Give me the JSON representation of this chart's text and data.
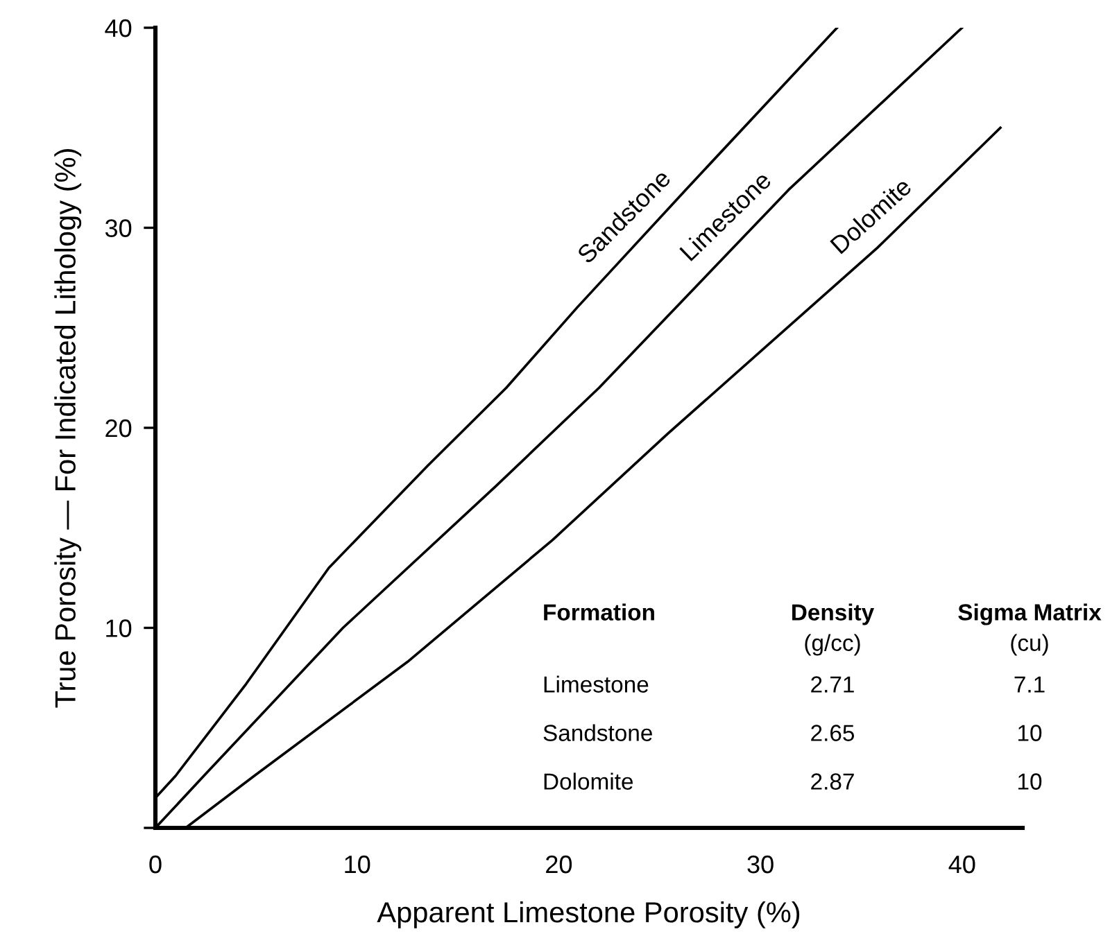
{
  "chart_data": {
    "type": "line",
    "xlabel": "Apparent Limestone Porosity (%)",
    "ylabel": "True Porosity — For Indicated Lithology (%)",
    "xlim": [
      0,
      43
    ],
    "ylim": [
      0,
      40
    ],
    "xticks": [
      0,
      10,
      20,
      30,
      40
    ],
    "yticks": [
      {
        "value": 0,
        "label": null
      },
      10,
      20,
      30,
      40
    ],
    "grid": false,
    "legend": false,
    "marker": "none",
    "line_style": "solid",
    "series": [
      {
        "name": "Sandstone",
        "color": "#000000",
        "x": [
          0,
          1.0,
          4.5,
          8.6,
          13.5,
          17.4,
          20.9,
          26.3,
          33.8
        ],
        "values": [
          1.5,
          2.6,
          7.2,
          13.0,
          18.1,
          22.0,
          26.0,
          31.9,
          40
        ]
      },
      {
        "name": "Limestone",
        "color": "#000000",
        "x": [
          0,
          2.4,
          9.3,
          16.9,
          22.0,
          31.4,
          40.0
        ],
        "values": [
          0,
          2.6,
          10.0,
          17.1,
          22.0,
          31.9,
          40.0
        ]
      },
      {
        "name": "Dolomite",
        "color": "#000000",
        "x": [
          1.5,
          4.9,
          12.5,
          19.7,
          25.4,
          35.8,
          41.9
        ],
        "values": [
          0,
          2.6,
          8.3,
          14.4,
          19.7,
          29.0,
          35.0
        ]
      }
    ],
    "annotations": [
      "Formation",
      "Density",
      "Sigma Matrix",
      "(g/cc)",
      "(cu)",
      "Limestone",
      "2.71",
      "7.1",
      "Sandstone",
      "2.65",
      "10",
      "Dolomite",
      "2.87",
      "10"
    ]
  }
}
